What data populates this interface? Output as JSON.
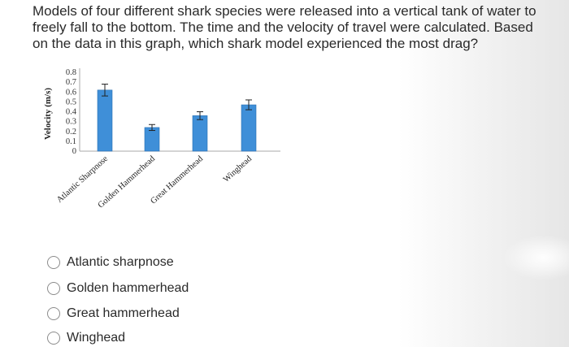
{
  "question": {
    "lines": [
      "Models of four different shark species were released into a vertical tank of water to",
      "freely fall to the bottom. The time and the velocity of travel were calculated. Based",
      "on the data in this graph, which shark model experienced the most drag?"
    ]
  },
  "chart_data": {
    "type": "bar",
    "categories": [
      "Atlantic Sharpnose",
      "Golden Hammerhead",
      "Great Hammerhead",
      "Winghead"
    ],
    "values": [
      0.62,
      0.24,
      0.36,
      0.47
    ],
    "error": [
      0.06,
      0.03,
      0.04,
      0.05
    ],
    "ylabel": "Velocity (m/s)",
    "xlabel": "",
    "ylim": [
      0,
      0.8
    ],
    "yticks": [
      "0.8",
      "0.7",
      "0.6",
      "0.5",
      "0.4",
      "0.3",
      "0.2",
      "0.1",
      "0"
    ],
    "bar_color": "#3f8fd8",
    "grid": false
  },
  "options": [
    {
      "label": "Atlantic sharpnose"
    },
    {
      "label": "Golden hammerhead"
    },
    {
      "label": "Great hammerhead"
    },
    {
      "label": "Winghead"
    }
  ]
}
